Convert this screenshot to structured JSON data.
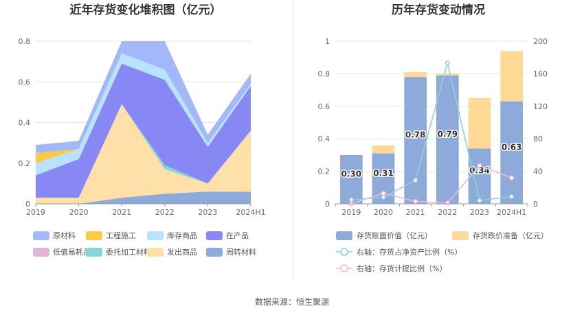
{
  "source_label": "数据来源：恒生聚源",
  "chart_data": [
    {
      "type": "area",
      "title": "近年存货变化堆积图（亿元）",
      "categories": [
        "2019",
        "2020",
        "2021",
        "2022",
        "2023",
        "2024H1"
      ],
      "ylim": [
        0,
        0.8
      ],
      "yticks": [
        "0",
        "0.2",
        "0.4",
        "0.6",
        "0.8"
      ],
      "stacked": true,
      "legend_position": "bottom",
      "series": [
        {
          "name": "周转材料",
          "color": "#8eaadb",
          "values": [
            0.0,
            0.0,
            0.03,
            0.05,
            0.06,
            0.06
          ]
        },
        {
          "name": "发出商品",
          "color": "#ffe0a8",
          "values": [
            0.03,
            0.03,
            0.46,
            0.12,
            0.04,
            0.3
          ]
        },
        {
          "name": "委托加工材料",
          "color": "#86d6d9",
          "values": [
            0.0,
            0.0,
            0.0,
            0.02,
            0.0,
            0.0
          ]
        },
        {
          "name": "低值易耗品",
          "color": "#e6b3d9",
          "values": [
            0.0,
            0.0,
            0.0,
            0.0,
            0.0,
            0.0
          ]
        },
        {
          "name": "在产品",
          "color": "#8888f5",
          "values": [
            0.11,
            0.19,
            0.2,
            0.42,
            0.18,
            0.22
          ]
        },
        {
          "name": "库存商品",
          "color": "#b8e3fb",
          "values": [
            0.06,
            0.05,
            0.05,
            0.05,
            0.02,
            0.01
          ]
        },
        {
          "name": "工程施工",
          "color": "#ffc845",
          "values": [
            0.05,
            0.0,
            0.0,
            0.0,
            0.0,
            0.0
          ]
        },
        {
          "name": "原材料",
          "color": "#a3b8f9",
          "values": [
            0.04,
            0.04,
            0.06,
            0.14,
            0.04,
            0.05
          ]
        }
      ],
      "legend_order": [
        "原材料",
        "工程施工",
        "库存商品",
        "在产品",
        "低值易耗品",
        "委托加工材料",
        "发出商品",
        "周转材料"
      ]
    },
    {
      "type": "bar",
      "title": "历年存货变动情况",
      "categories": [
        "2019",
        "2020",
        "2021",
        "2022",
        "2023",
        "2024H1"
      ],
      "ylim": [
        0,
        1
      ],
      "yticks": [
        "0",
        "0.2",
        "0.4",
        "0.6",
        "0.8",
        "1"
      ],
      "y2lim": [
        0,
        200
      ],
      "y2ticks": [
        "0",
        "40",
        "80",
        "120",
        "160",
        "200"
      ],
      "legend_position": "bottom",
      "series": [
        {
          "name": "存货账面价值（亿元）",
          "type": "bar",
          "color": "#8eaadb",
          "values": [
            0.3,
            0.31,
            0.78,
            0.79,
            0.34,
            0.63
          ],
          "labels": [
            "0.30",
            "0.31",
            "0.78",
            "0.79",
            "0.34",
            "0.63"
          ]
        },
        {
          "name": "存货跌价准备（亿元）",
          "type": "bar",
          "color": "#ffd995",
          "values": [
            0.0,
            0.05,
            0.03,
            0.01,
            0.31,
            0.31
          ]
        },
        {
          "name": "右轴：存货占净资产比例（%）",
          "type": "line",
          "color": "#86d6d9",
          "axis": "right",
          "values": [
            5,
            8,
            29,
            173,
            4,
            9
          ]
        },
        {
          "name": "右轴：存货计提比例（%）",
          "type": "line",
          "color": "#ecb8dd",
          "axis": "right",
          "values": [
            0,
            13,
            3,
            1,
            47,
            32
          ]
        }
      ]
    }
  ]
}
